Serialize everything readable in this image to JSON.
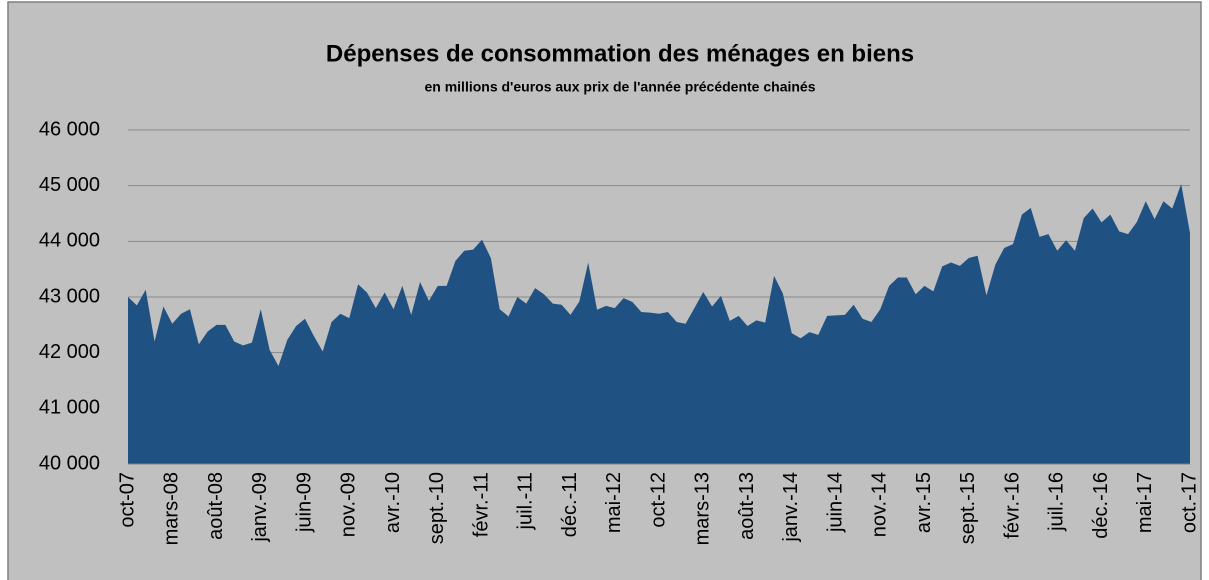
{
  "chart_data": {
    "type": "area",
    "title": "Dépenses de consommation des ménages en biens",
    "subtitle": "en millions d'euros aux prix de l'année précédente chainés",
    "categories": [
      "oct-07",
      null,
      null,
      null,
      null,
      "mars-08",
      null,
      null,
      null,
      null,
      "août-08",
      null,
      null,
      null,
      null,
      "janv.-09",
      null,
      null,
      null,
      null,
      "juin-09",
      null,
      null,
      null,
      null,
      "nov.-09",
      null,
      null,
      null,
      null,
      "avr.-10",
      null,
      null,
      null,
      null,
      "sept.-10",
      null,
      null,
      null,
      null,
      "févr.-11",
      null,
      null,
      null,
      null,
      "juil.-11",
      null,
      null,
      null,
      null,
      "déc.-11",
      null,
      null,
      null,
      null,
      "mai-12",
      null,
      null,
      null,
      null,
      "oct-12",
      null,
      null,
      null,
      null,
      "mars-13",
      null,
      null,
      null,
      null,
      "août-13",
      null,
      null,
      null,
      null,
      "janv.-14",
      null,
      null,
      null,
      null,
      "juin-14",
      null,
      null,
      null,
      null,
      "nov.-14",
      null,
      null,
      null,
      null,
      "avr.-15",
      null,
      null,
      null,
      null,
      "sept.-15",
      null,
      null,
      null,
      null,
      "févr.-16",
      null,
      null,
      null,
      null,
      "juil.-16",
      null,
      null,
      null,
      null,
      "déc.-16",
      null,
      null,
      null,
      null,
      "mai-17",
      null,
      null,
      null,
      null,
      "oct.-17"
    ],
    "values": [
      43000,
      42850,
      43130,
      42200,
      42830,
      42520,
      42700,
      42780,
      42150,
      42380,
      42500,
      42500,
      42200,
      42130,
      42180,
      42780,
      42050,
      41760,
      42230,
      42480,
      42610,
      42300,
      42020,
      42550,
      42700,
      42620,
      43230,
      43080,
      42800,
      43080,
      42780,
      43200,
      42680,
      43270,
      42930,
      43200,
      43200,
      43650,
      43830,
      43850,
      44030,
      43700,
      42780,
      42650,
      43000,
      42880,
      43160,
      43050,
      42880,
      42860,
      42680,
      42920,
      43620,
      42770,
      42840,
      42800,
      42980,
      42910,
      42730,
      42720,
      42700,
      42730,
      42550,
      42520,
      42800,
      43090,
      42830,
      43020,
      42570,
      42660,
      42480,
      42580,
      42540,
      43380,
      43060,
      42350,
      42260,
      42370,
      42320,
      42660,
      42670,
      42680,
      42860,
      42610,
      42550,
      42780,
      43200,
      43350,
      43350,
      43050,
      43200,
      43100,
      43550,
      43620,
      43560,
      43700,
      43740,
      43030,
      43580,
      43880,
      43950,
      44480,
      44600,
      44080,
      44130,
      43830,
      44020,
      43830,
      44420,
      44590,
      44340,
      44480,
      44180,
      44130,
      44350,
      44720,
      44400,
      44720,
      44590,
      45030,
      44150
    ],
    "color": "#1f5283",
    "ylim": [
      40000,
      46000
    ],
    "yticks": [
      {
        "value": 40000,
        "label": "40 000"
      },
      {
        "value": 41000,
        "label": "41 000"
      },
      {
        "value": 42000,
        "label": "42 000"
      },
      {
        "value": 43000,
        "label": "43 000"
      },
      {
        "value": 44000,
        "label": "44 000"
      },
      {
        "value": 45000,
        "label": "45 000"
      },
      {
        "value": 46000,
        "label": "46 000"
      }
    ],
    "grid": true
  }
}
